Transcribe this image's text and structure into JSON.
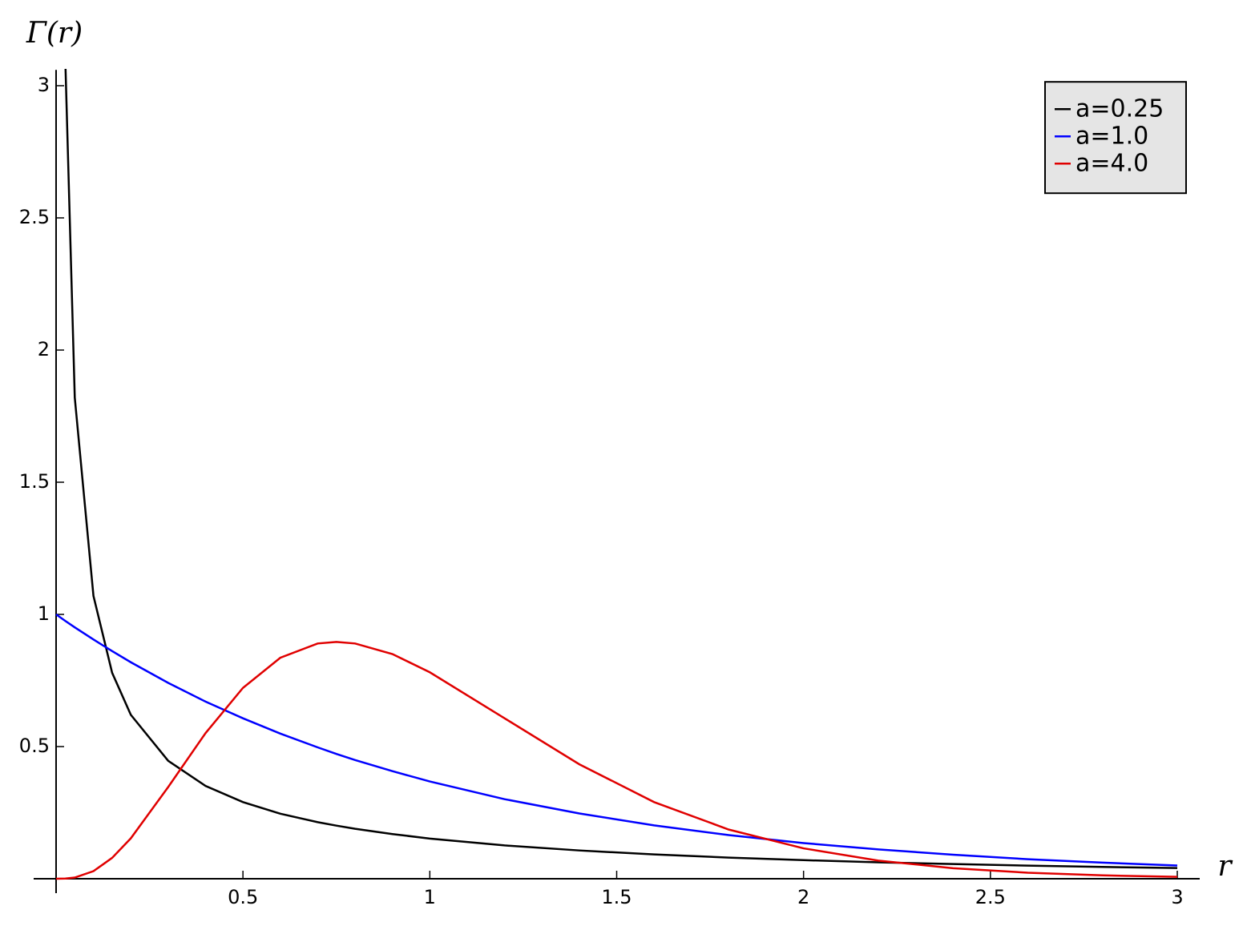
{
  "chart_data": {
    "type": "line",
    "x_label": "r",
    "y_label": "Γ(r)",
    "x": [
      0,
      0.025,
      0.05,
      0.1,
      0.15,
      0.2,
      0.3,
      0.4,
      0.5,
      0.6,
      0.7,
      0.75,
      0.8,
      0.9,
      1.0,
      1.2,
      1.4,
      1.6,
      1.8,
      2.0,
      2.2,
      2.4,
      2.6,
      2.8,
      3.0
    ],
    "series": [
      {
        "name": "a=0.25",
        "color": "#000000",
        "values": [
          null,
          3.08,
          1.82,
          1.07,
          0.779,
          0.62,
          0.446,
          0.351,
          0.29,
          0.246,
          0.214,
          0.201,
          0.189,
          0.169,
          0.152,
          0.126,
          0.107,
          0.0919,
          0.08,
          0.0703,
          0.0623,
          0.0555,
          0.0497,
          0.0447,
          0.0404
        ]
      },
      {
        "name": "a=1.0",
        "color": "#0000ff",
        "values": [
          1,
          0.975,
          0.951,
          0.905,
          0.861,
          0.819,
          0.741,
          0.67,
          0.607,
          0.549,
          0.497,
          0.472,
          0.449,
          0.407,
          0.368,
          0.301,
          0.247,
          0.202,
          0.165,
          0.135,
          0.111,
          0.091,
          0.074,
          0.061,
          0.05
        ]
      },
      {
        "name": "a=4.0",
        "color": "#e00000",
        "values": [
          0,
          0.0006,
          0.0044,
          0.0286,
          0.079,
          0.153,
          0.347,
          0.551,
          0.722,
          0.836,
          0.89,
          0.896,
          0.89,
          0.85,
          0.781,
          0.607,
          0.433,
          0.29,
          0.186,
          0.115,
          0.0685,
          0.0399,
          0.0228,
          0.0128,
          0.0071
        ]
      }
    ],
    "xlim": [
      -0.06,
      3.06
    ],
    "ylim": [
      0,
      3.06
    ],
    "xticks": [
      0.5,
      1,
      1.5,
      2,
      2.5,
      3
    ],
    "yticks": [
      0.5,
      1,
      1.5,
      2,
      2.5,
      3
    ],
    "legend": "upper right",
    "grid": false
  }
}
